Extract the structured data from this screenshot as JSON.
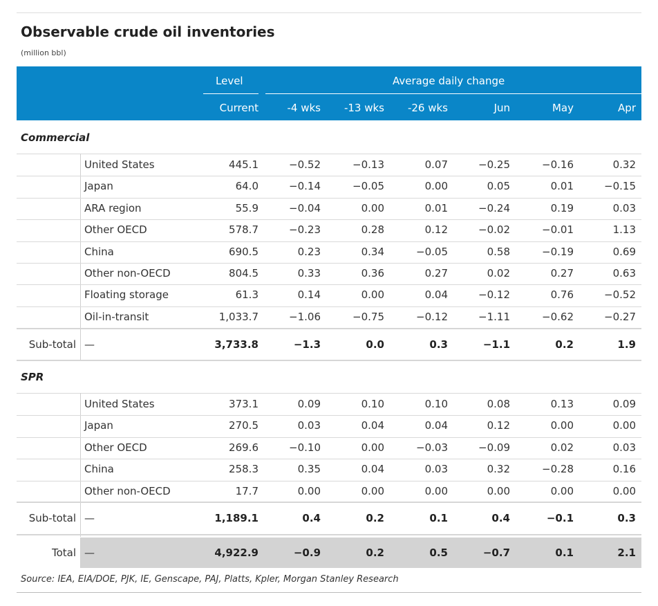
{
  "title": "Observable crude oil inventories",
  "subtitle": "(million bbl)",
  "header": {
    "group_level": "Level",
    "group_change": "Average daily change",
    "columns": [
      "Current",
      "-4 wks",
      "-13 wks",
      "-26 wks",
      "Jun",
      "May",
      "Apr"
    ]
  },
  "commercial": {
    "label": "Commercial",
    "rows": [
      {
        "name": "United States",
        "values": [
          "445.1",
          "−0.52",
          "−0.13",
          "0.07",
          "−0.25",
          "−0.16",
          "0.32"
        ]
      },
      {
        "name": "Japan",
        "values": [
          "64.0",
          "−0.14",
          "−0.05",
          "0.00",
          "0.05",
          "0.01",
          "−0.15"
        ]
      },
      {
        "name": "ARA region",
        "values": [
          "55.9",
          "−0.04",
          "0.00",
          "0.01",
          "−0.24",
          "0.19",
          "0.03"
        ]
      },
      {
        "name": "Other OECD",
        "values": [
          "578.7",
          "−0.23",
          "0.28",
          "0.12",
          "−0.02",
          "−0.01",
          "1.13"
        ]
      },
      {
        "name": "China",
        "values": [
          "690.5",
          "0.23",
          "0.34",
          "−0.05",
          "0.58",
          "−0.19",
          "0.69"
        ]
      },
      {
        "name": "Other non-OECD",
        "values": [
          "804.5",
          "0.33",
          "0.36",
          "0.27",
          "0.02",
          "0.27",
          "0.63"
        ]
      },
      {
        "name": "Floating storage",
        "values": [
          "61.3",
          "0.14",
          "0.00",
          "0.04",
          "−0.12",
          "0.76",
          "−0.52"
        ]
      },
      {
        "name": "Oil-in-transit",
        "values": [
          "1,033.7",
          "−1.06",
          "−0.75",
          "−0.12",
          "−1.11",
          "−0.62",
          "−0.27"
        ]
      }
    ],
    "subtotal": {
      "label": "Sub-total",
      "dash": "—",
      "values": [
        "3,733.8",
        "−1.3",
        "0.0",
        "0.3",
        "−1.1",
        "0.2",
        "1.9"
      ]
    }
  },
  "spr": {
    "label": "SPR",
    "rows": [
      {
        "name": "United States",
        "values": [
          "373.1",
          "0.09",
          "0.10",
          "0.10",
          "0.08",
          "0.13",
          "0.09"
        ]
      },
      {
        "name": "Japan",
        "values": [
          "270.5",
          "0.03",
          "0.04",
          "0.04",
          "0.12",
          "0.00",
          "0.00"
        ]
      },
      {
        "name": "Other OECD",
        "values": [
          "269.6",
          "−0.10",
          "0.00",
          "−0.03",
          "−0.09",
          "0.02",
          "0.03"
        ]
      },
      {
        "name": "China",
        "values": [
          "258.3",
          "0.35",
          "0.04",
          "0.03",
          "0.32",
          "−0.28",
          "0.16"
        ]
      },
      {
        "name": "Other non-OECD",
        "values": [
          "17.7",
          "0.00",
          "0.00",
          "0.00",
          "0.00",
          "0.00",
          "0.00"
        ]
      }
    ],
    "subtotal": {
      "label": "Sub-total",
      "dash": "—",
      "values": [
        "1,189.1",
        "0.4",
        "0.2",
        "0.1",
        "0.4",
        "−0.1",
        "0.3"
      ]
    }
  },
  "total": {
    "label": "Total",
    "dash": "—",
    "values": [
      "4,922.9",
      "−0.9",
      "0.2",
      "0.5",
      "−0.7",
      "0.1",
      "2.1"
    ]
  },
  "source": "Source: IEA, EIA/DOE, PJK, IE, Genscape, PAJ, Platts, Kpler, Morgan Stanley Research"
}
